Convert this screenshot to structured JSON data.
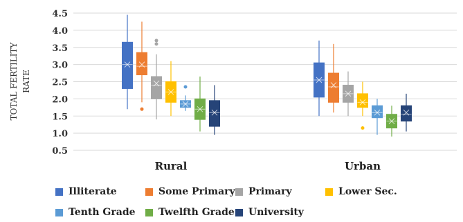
{
  "chart_data": {
    "type": "box",
    "title": "",
    "ylabel": "TOTAL FERTILITY RATE",
    "xlabel": "",
    "ylim": [
      0.5,
      4.5
    ],
    "yticks": [
      "0.5",
      "1.0",
      "1.5",
      "2.0",
      "2.5",
      "3.0",
      "3.5",
      "4.0",
      "4.5"
    ],
    "grid": true,
    "legend_position": "bottom",
    "categories": [
      "Rural",
      "Urban"
    ],
    "series": [
      {
        "name": "Illiterate",
        "color": "#4472C4",
        "boxes": [
          {
            "min": 1.7,
            "q1": 2.3,
            "median": 3.0,
            "q3": 3.65,
            "max": 4.45,
            "mean": 3.0,
            "outliers": []
          },
          {
            "min": 1.5,
            "q1": 2.05,
            "median": 2.55,
            "q3": 3.05,
            "max": 3.7,
            "mean": 2.55,
            "outliers": []
          }
        ]
      },
      {
        "name": "Some Primary",
        "color": "#ED7D31",
        "boxes": [
          {
            "min": 1.9,
            "q1": 2.7,
            "median": 2.95,
            "q3": 3.35,
            "max": 4.25,
            "mean": 3.0,
            "outliers": [
              1.7
            ]
          },
          {
            "min": 1.6,
            "q1": 1.9,
            "median": 2.35,
            "q3": 2.75,
            "max": 3.6,
            "mean": 2.4,
            "outliers": []
          }
        ]
      },
      {
        "name": "Primary",
        "color": "#A5A5A5",
        "boxes": [
          {
            "min": 1.4,
            "q1": 2.0,
            "median": 2.4,
            "q3": 2.65,
            "max": 3.3,
            "mean": 2.45,
            "outliers": [
              3.6,
              3.7
            ]
          },
          {
            "min": 1.5,
            "q1": 1.9,
            "median": 2.15,
            "q3": 2.4,
            "max": 2.8,
            "mean": 2.15,
            "outliers": []
          }
        ]
      },
      {
        "name": "Lower Sec.",
        "color": "#FFC000",
        "boxes": [
          {
            "min": 1.5,
            "q1": 1.9,
            "median": 2.2,
            "q3": 2.5,
            "max": 3.1,
            "mean": 2.2,
            "outliers": []
          },
          {
            "min": 1.5,
            "q1": 1.75,
            "median": 1.9,
            "q3": 2.15,
            "max": 2.5,
            "mean": 1.9,
            "outliers": [
              1.15
            ]
          }
        ]
      },
      {
        "name": "Tenth Grade",
        "color": "#5B9BD5",
        "boxes": [
          {
            "min": 1.65,
            "q1": 1.75,
            "median": 1.85,
            "q3": 1.95,
            "max": 2.1,
            "mean": 1.85,
            "outliers": [
              2.35
            ]
          },
          {
            "min": 0.95,
            "q1": 1.45,
            "median": 1.6,
            "q3": 1.8,
            "max": 2.0,
            "mean": 1.6,
            "outliers": []
          }
        ]
      },
      {
        "name": "Twelfth Grade",
        "color": "#70AD47",
        "boxes": [
          {
            "min": 1.05,
            "q1": 1.4,
            "median": 1.7,
            "q3": 2.0,
            "max": 2.65,
            "mean": 1.7,
            "outliers": []
          },
          {
            "min": 0.9,
            "q1": 1.15,
            "median": 1.35,
            "q3": 1.55,
            "max": 1.8,
            "mean": 1.35,
            "outliers": []
          }
        ]
      },
      {
        "name": "University",
        "color": "#264478",
        "boxes": [
          {
            "min": 0.95,
            "q1": 1.2,
            "median": 1.6,
            "q3": 1.95,
            "max": 2.4,
            "mean": 1.6,
            "outliers": []
          },
          {
            "min": 1.05,
            "q1": 1.35,
            "median": 1.55,
            "q3": 1.8,
            "max": 2.15,
            "mean": 1.6,
            "outliers": []
          }
        ]
      }
    ]
  }
}
